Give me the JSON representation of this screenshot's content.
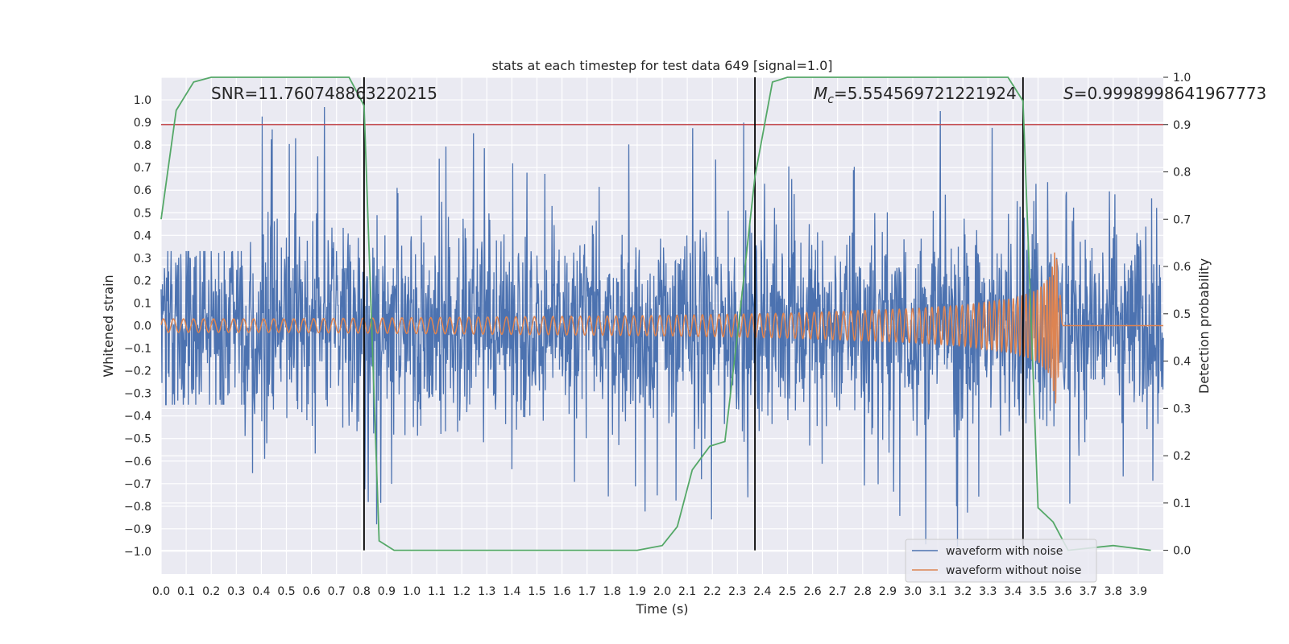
{
  "chart_data": {
    "type": "line",
    "title": "stats at each timestep for test data 649 [signal=1.0]",
    "xlabel": "Time (s)",
    "ylabel": "Whitened strain",
    "y2label": "Detection probability",
    "xlim": [
      0.0,
      4.0
    ],
    "ylim": [
      -1.1,
      1.1
    ],
    "y2lim": [
      -0.05,
      1.0
    ],
    "grid": true,
    "legend_position": "lower-right",
    "x_ticks": [
      "0.0",
      "0.1",
      "0.2",
      "0.3",
      "0.4",
      "0.5",
      "0.6",
      "0.7",
      "0.8",
      "0.9",
      "1.0",
      "1.1",
      "1.2",
      "1.3",
      "1.4",
      "1.5",
      "1.6",
      "1.7",
      "1.8",
      "1.9",
      "2.0",
      "2.1",
      "2.2",
      "2.3",
      "2.4",
      "2.5",
      "2.6",
      "2.7",
      "2.8",
      "2.9",
      "3.0",
      "3.1",
      "3.2",
      "3.3",
      "3.4",
      "3.5",
      "3.6",
      "3.7",
      "3.8",
      "3.9"
    ],
    "y_ticks": [
      "1.0",
      "0.9",
      "0.8",
      "0.7",
      "0.6",
      "0.5",
      "0.4",
      "0.3",
      "0.2",
      "0.1",
      "0.0",
      "−0.1",
      "−0.2",
      "−0.3",
      "−0.4",
      "−0.5",
      "−0.6",
      "−0.7",
      "−0.8",
      "−0.9",
      "−1.0"
    ],
    "y2_ticks": [
      "1.0",
      "0.9",
      "0.8",
      "0.7",
      "0.6",
      "0.5",
      "0.4",
      "0.3",
      "0.2",
      "0.1",
      "0.0"
    ],
    "annotations": {
      "snr": "SNR=11.760748863220215",
      "mc_symbol": "M",
      "mc_sub": "c",
      "mc_value": "=5.554569721221924",
      "s_symbol": "S",
      "s_value": "=0.9998998641967773"
    },
    "threshold_y2": 0.9,
    "vertical_lines_x": [
      0.81,
      2.37,
      3.44
    ],
    "legend": [
      "waveform with noise",
      "waveform without noise"
    ],
    "series": [
      {
        "name": "waveform with noise",
        "color": "#4c72b0",
        "x_range": [
          0.0,
          4.0
        ],
        "envelope_ymax": [
          0.33,
          0.97,
          0.78,
          0.88,
          0.85,
          0.81,
          0.9,
          0.76,
          0.83,
          0.98,
          0.67,
          0.6
        ],
        "envelope_ymin": [
          -0.35,
          -0.72,
          -0.93,
          -0.86,
          -0.8,
          -0.9,
          -0.86,
          -0.77,
          -0.92,
          -1.0,
          -0.91,
          -0.86
        ],
        "note_values": "dense noisy strain; amplitude envelope per ~0.33 s segment"
      },
      {
        "name": "waveform without noise",
        "color": "#dd8452",
        "x": [
          0.0,
          0.5,
          1.0,
          1.5,
          2.0,
          2.5,
          3.0,
          3.2,
          3.4,
          3.5,
          3.55,
          3.57,
          3.6,
          4.0
        ],
        "amplitude": [
          0.03,
          0.03,
          0.035,
          0.04,
          0.045,
          0.055,
          0.075,
          0.09,
          0.12,
          0.16,
          0.22,
          0.35,
          0.0,
          0.0
        ],
        "frequency_hz": [
          25,
          25,
          26,
          27,
          29,
          32,
          38,
          43,
          55,
          70,
          95,
          120,
          0,
          0
        ]
      },
      {
        "name": "detection probability",
        "color": "#55a868",
        "axis": "right",
        "x": [
          0.0,
          0.06,
          0.13,
          0.2,
          0.3,
          0.5,
          0.75,
          0.81,
          0.87,
          0.93,
          1.2,
          1.6,
          1.9,
          2.0,
          2.06,
          2.12,
          2.19,
          2.25,
          2.31,
          2.37,
          2.44,
          2.5,
          2.8,
          3.38,
          3.44,
          3.5,
          3.56,
          3.62,
          3.8,
          3.95
        ],
        "y": [
          0.7,
          0.93,
          0.99,
          1.0,
          1.0,
          1.0,
          1.0,
          0.94,
          0.02,
          0.0,
          0.0,
          0.0,
          0.0,
          0.01,
          0.05,
          0.17,
          0.22,
          0.23,
          0.5,
          0.79,
          0.99,
          1.0,
          1.0,
          1.0,
          0.95,
          0.09,
          0.06,
          0.0,
          0.01,
          0.0
        ]
      }
    ],
    "colors": {
      "background": "#eaeaf2",
      "grid": "#ffffff",
      "threshold": "#c44e52",
      "vertical": "#000000"
    }
  }
}
